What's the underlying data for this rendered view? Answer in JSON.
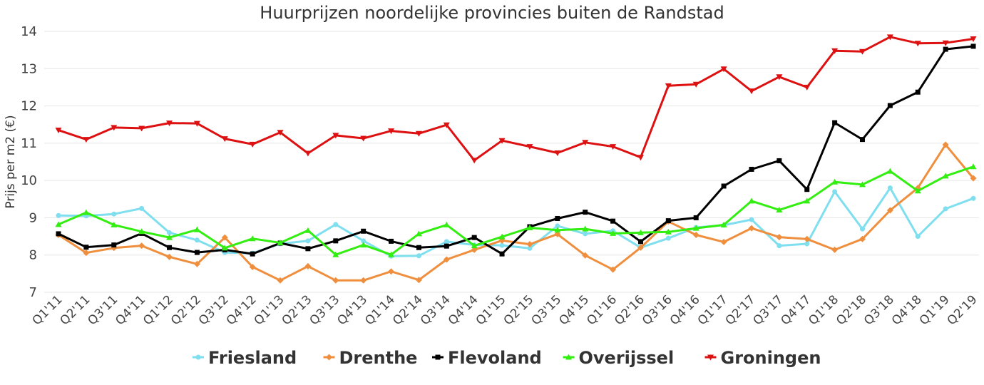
{
  "chart_data": {
    "type": "line",
    "title": "Huurprijzen noordelijke provincies buiten de Randstad",
    "ylabel": "Prijs per m2 (€)",
    "xlabel": "",
    "ylim": [
      7,
      14
    ],
    "yticks": [
      7,
      8,
      9,
      10,
      11,
      12,
      13,
      14
    ],
    "grid": true,
    "legend_position": "bottom",
    "categories": [
      "Q1'11",
      "Q2'11",
      "Q3'11",
      "Q4'11",
      "Q1'12",
      "Q2'12",
      "Q3'12",
      "Q4'12",
      "Q1'13",
      "Q2'13",
      "Q3'13",
      "Q4'13",
      "Q1'14",
      "Q2'14",
      "Q3'14",
      "Q4'14",
      "Q1'15",
      "Q2'15",
      "Q3'15",
      "Q4'15",
      "Q1'16",
      "Q2'16",
      "Q3'16",
      "Q4'16",
      "Q1'17",
      "Q2'17",
      "Q3'17",
      "Q4'17",
      "Q1'18",
      "Q2'18",
      "Q3'18",
      "Q4'18",
      "Q1'19",
      "Q2'19"
    ],
    "series": [
      {
        "name": "Friesland",
        "color": "#7fdfef",
        "marker": "circle",
        "values": [
          9.06,
          9.05,
          9.1,
          9.25,
          8.6,
          8.4,
          8.07,
          8.05,
          8.3,
          8.38,
          8.82,
          8.38,
          7.97,
          7.98,
          8.36,
          8.27,
          8.26,
          8.18,
          8.78,
          8.57,
          8.65,
          8.2,
          8.45,
          8.74,
          8.8,
          8.95,
          8.25,
          8.3,
          9.7,
          8.7,
          9.8,
          8.5,
          9.24,
          9.52
        ]
      },
      {
        "name": "Drenthe",
        "color": "#ef8f3e",
        "marker": "diamond",
        "values": [
          8.54,
          8.06,
          8.19,
          8.25,
          7.95,
          7.76,
          8.47,
          7.68,
          7.32,
          7.7,
          7.32,
          7.32,
          7.56,
          7.33,
          7.88,
          8.14,
          8.39,
          8.29,
          8.56,
          7.99,
          7.61,
          8.2,
          8.9,
          8.54,
          8.35,
          8.72,
          8.48,
          8.43,
          8.14,
          8.43,
          9.2,
          9.8,
          10.96,
          10.06
        ]
      },
      {
        "name": "Flevoland",
        "color": "#000000",
        "marker": "square",
        "values": [
          8.57,
          8.21,
          8.27,
          8.58,
          8.2,
          8.07,
          8.14,
          8.03,
          8.32,
          8.17,
          8.38,
          8.64,
          8.37,
          8.2,
          8.24,
          8.47,
          8.03,
          8.76,
          8.98,
          9.15,
          8.91,
          8.36,
          8.92,
          9.0,
          9.85,
          10.3,
          10.53,
          9.76,
          11.55,
          11.1,
          12.01,
          12.37,
          13.52,
          13.6
        ]
      },
      {
        "name": "Overijssel",
        "color": "#33ee11",
        "marker": "triangle-up",
        "values": [
          8.82,
          9.14,
          8.81,
          8.63,
          8.47,
          8.68,
          8.19,
          8.44,
          8.33,
          8.66,
          8.01,
          8.27,
          8.01,
          8.57,
          8.81,
          8.25,
          8.49,
          8.73,
          8.67,
          8.7,
          8.58,
          8.6,
          8.62,
          8.72,
          8.81,
          9.45,
          9.21,
          9.45,
          9.96,
          9.89,
          10.25,
          9.72,
          10.12,
          10.37
        ]
      },
      {
        "name": "Groningen",
        "color": "#dd1111",
        "marker": "triangle-down",
        "values": [
          11.35,
          11.1,
          11.42,
          11.4,
          11.54,
          11.53,
          11.12,
          10.97,
          11.29,
          10.73,
          11.21,
          11.13,
          11.33,
          11.26,
          11.49,
          10.54,
          11.07,
          10.91,
          10.74,
          11.02,
          10.91,
          10.62,
          12.54,
          12.58,
          12.99,
          12.4,
          12.78,
          12.5,
          13.48,
          13.46,
          13.85,
          13.68,
          13.69,
          13.8
        ]
      }
    ]
  }
}
